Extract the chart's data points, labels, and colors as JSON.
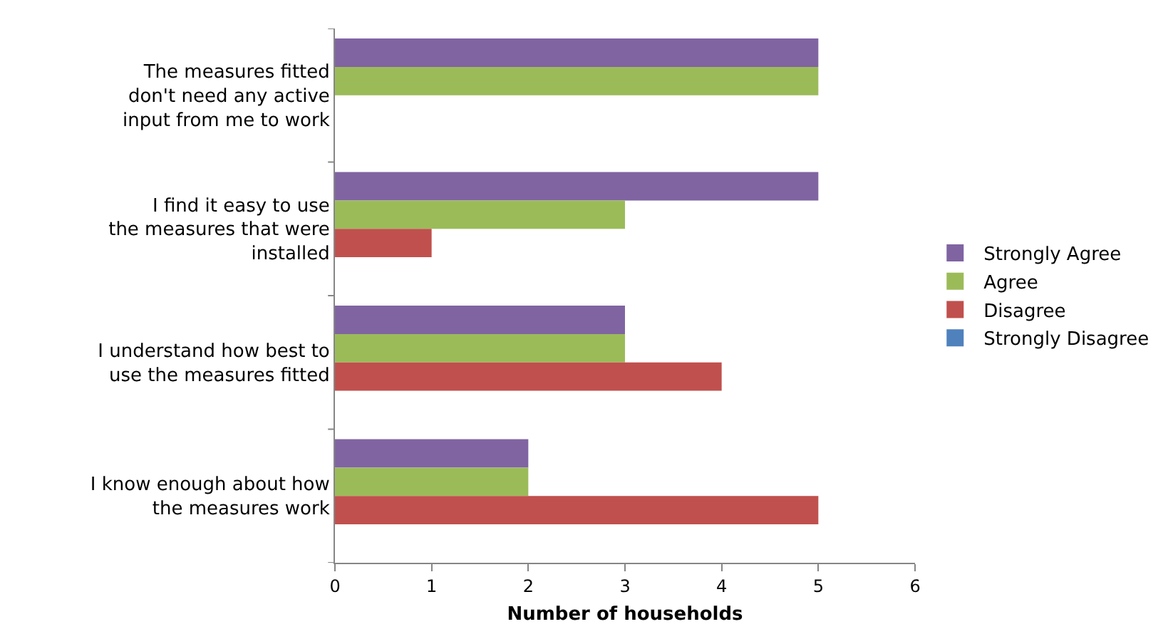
{
  "chart_data": {
    "type": "bar",
    "orientation": "horizontal",
    "xlabel": "Number of households",
    "categories": [
      "The measures fitted don't need any active input from me to work",
      "I find it easy to use the measures that were installed",
      "I understand how best to use the measures fitted",
      "I know enough about how the measures work"
    ],
    "series": [
      {
        "name": "Strongly Agree",
        "color": "#8064a2",
        "values": [
          5,
          5,
          3,
          2
        ]
      },
      {
        "name": "Agree",
        "color": "#9bbb59",
        "values": [
          5,
          3,
          3,
          2
        ]
      },
      {
        "name": "Disagree",
        "color": "#c0504d",
        "values": [
          0,
          1,
          4,
          5
        ]
      },
      {
        "name": "Strongly Disagree",
        "color": "#4f81bd",
        "values": [
          0,
          0,
          0,
          0
        ]
      }
    ],
    "xlim": [
      0,
      6
    ],
    "xticks": [
      0,
      1,
      2,
      3,
      4,
      5,
      6
    ],
    "grid": false,
    "legend": "right"
  }
}
